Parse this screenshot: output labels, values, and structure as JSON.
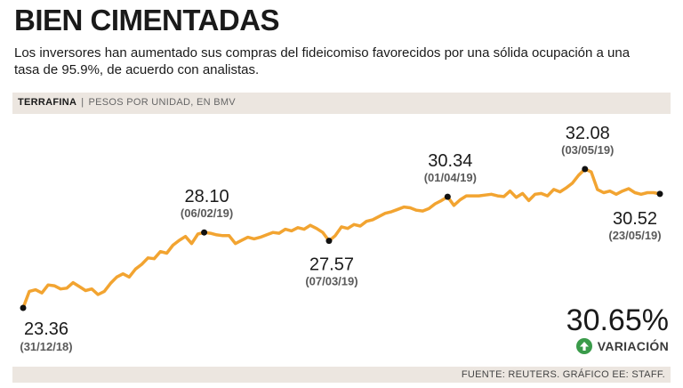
{
  "header": {
    "title": "BIEN CIMENTADAS",
    "subtitle": "Los inversores han aumentado sus compras del fideicomiso favorecidos por una sólida ocupación a una tasa de 95.9%, de acuerdo con analistas."
  },
  "chart_header": {
    "name": "TERRAFINA",
    "separator": "|",
    "unit": "Pesos por unidad, en BMV"
  },
  "variation": {
    "value": "30.65%",
    "label": "VARIACIÓN",
    "icon": "arrow-up-icon",
    "color": "#3a9b4a"
  },
  "footer": {
    "source": "FUENTE: REUTERS. GRÁFICO EE: STAFF."
  },
  "chart_data": {
    "type": "line",
    "line_color": "#f2a431",
    "ylim": [
      22.5,
      32.5
    ],
    "x_range": [
      "2018-12-31",
      "2019-05-24"
    ],
    "values": [
      23.36,
      24.4,
      24.5,
      24.3,
      24.8,
      24.75,
      24.55,
      24.6,
      24.95,
      24.7,
      24.45,
      24.55,
      24.2,
      24.4,
      24.9,
      25.3,
      25.5,
      25.3,
      25.8,
      26.1,
      26.5,
      26.45,
      26.9,
      26.8,
      27.3,
      27.6,
      27.85,
      27.4,
      28.0,
      28.1,
      28.05,
      27.95,
      27.9,
      27.9,
      27.4,
      27.6,
      27.8,
      27.7,
      27.8,
      27.95,
      28.1,
      28.05,
      28.3,
      28.2,
      28.4,
      28.3,
      28.55,
      28.35,
      28.1,
      27.57,
      27.9,
      28.45,
      28.35,
      28.6,
      28.5,
      28.8,
      28.9,
      29.1,
      29.3,
      29.4,
      29.55,
      29.7,
      29.65,
      29.5,
      29.45,
      29.6,
      29.9,
      30.1,
      30.34,
      29.8,
      30.15,
      30.4,
      30.4,
      30.4,
      30.45,
      30.5,
      30.4,
      30.35,
      30.7,
      30.3,
      30.55,
      30.1,
      30.5,
      30.55,
      30.4,
      30.8,
      30.65,
      30.9,
      31.2,
      31.7,
      32.08,
      31.9,
      30.8,
      30.6,
      30.7,
      30.5,
      30.7,
      30.85,
      30.6,
      30.5,
      30.6,
      30.6,
      30.52
    ],
    "annotations": [
      {
        "index": 0,
        "value": "23.36",
        "date": "(31/12/18)",
        "position": "below"
      },
      {
        "index": 29,
        "value": "28.10",
        "date": "(06/02/19)",
        "position": "above"
      },
      {
        "index": 49,
        "value": "27.57",
        "date": "(07/03/19)",
        "position": "below"
      },
      {
        "index": 68,
        "value": "30.34",
        "date": "(01/04/19)",
        "position": "above"
      },
      {
        "index": 90,
        "value": "32.08",
        "date": "(03/05/19)",
        "position": "above"
      },
      {
        "index": 102,
        "value": "30.52",
        "date": "(23/05/19)",
        "position": "below-left"
      }
    ]
  }
}
